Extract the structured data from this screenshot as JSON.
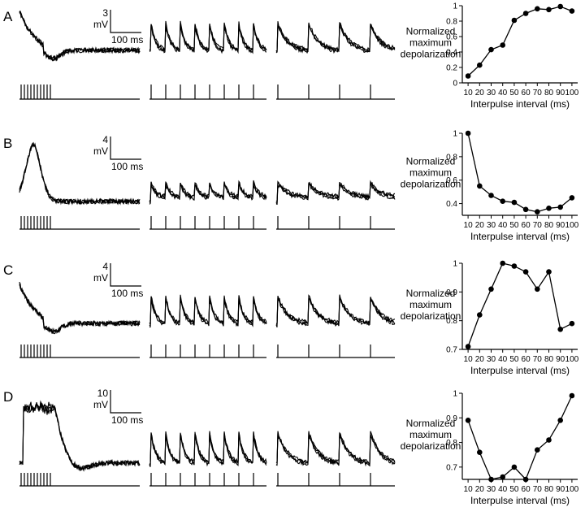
{
  "panels": [
    {
      "letter": "A",
      "scale_mv": "3",
      "mv_unit": "mV",
      "scale_ms": "100 ms",
      "sweep_kind": "train"
    },
    {
      "letter": "B",
      "scale_mv": "4",
      "mv_unit": "mV",
      "scale_ms": "100 ms",
      "sweep_kind": "slow"
    },
    {
      "letter": "C",
      "scale_mv": "4",
      "mv_unit": "mV",
      "scale_ms": "100 ms",
      "sweep_kind": "train"
    },
    {
      "letter": "D",
      "scale_mv": "10",
      "mv_unit": "mV",
      "scale_ms": "100 ms",
      "sweep_kind": "burst"
    }
  ],
  "chart_data": [
    {
      "panel": "A",
      "type": "line",
      "x": [
        10,
        20,
        30,
        40,
        50,
        60,
        70,
        80,
        90,
        100
      ],
      "values": [
        0.09,
        0.23,
        0.43,
        0.49,
        0.81,
        0.9,
        0.96,
        0.95,
        0.99,
        0.93
      ],
      "ylim": [
        0.0,
        1.0
      ],
      "yticks": [
        "0",
        "0.2",
        "0.4",
        "0.6",
        "0.8",
        "1"
      ],
      "xticks": [
        "10",
        "20",
        "30",
        "40",
        "50",
        "60",
        "70",
        "80",
        "90",
        "100"
      ],
      "ylabel": [
        "Normalized",
        "maximum",
        "depolarization"
      ],
      "xlabel": "Interpulse interval (ms)"
    },
    {
      "panel": "B",
      "type": "line",
      "x": [
        10,
        20,
        30,
        40,
        50,
        60,
        70,
        80,
        90,
        100
      ],
      "values": [
        1.0,
        0.55,
        0.47,
        0.42,
        0.41,
        0.35,
        0.33,
        0.36,
        0.37,
        0.45
      ],
      "ylim": [
        0.3,
        1.0
      ],
      "yticks": [
        "0.4",
        "0.6",
        "0.8",
        "1"
      ],
      "yticks_at": [
        0.4,
        0.6,
        0.8,
        1.0
      ],
      "xticks": [
        "10",
        "20",
        "30",
        "40",
        "50",
        "60",
        "70",
        "80",
        "90",
        "100"
      ],
      "ylabel": [
        "Normalized",
        "maximum",
        "depolarization"
      ],
      "xlabel": "Interpulse interval (ms)"
    },
    {
      "panel": "C",
      "type": "line",
      "x": [
        10,
        20,
        30,
        40,
        50,
        60,
        70,
        80,
        90,
        100
      ],
      "values": [
        0.71,
        0.82,
        0.91,
        1.0,
        0.99,
        0.97,
        0.91,
        0.97,
        0.77,
        0.79
      ],
      "ylim": [
        0.7,
        1.0
      ],
      "yticks": [
        "0.7",
        "0.8",
        "0.9",
        "1"
      ],
      "yticks_at": [
        0.7,
        0.8,
        0.9,
        1.0
      ],
      "xticks": [
        "10",
        "20",
        "30",
        "40",
        "50",
        "60",
        "70",
        "80",
        "90",
        "100"
      ],
      "ylabel": [
        "Normalized",
        "maximum",
        "depolarization"
      ],
      "xlabel": "Interpulse interval (ms)"
    },
    {
      "panel": "D",
      "type": "line",
      "x": [
        10,
        20,
        30,
        40,
        50,
        60,
        70,
        80,
        90,
        100
      ],
      "values": [
        0.89,
        0.76,
        0.65,
        0.66,
        0.7,
        0.64,
        0.77,
        0.81,
        0.89,
        0.99
      ],
      "ylim": [
        0.65,
        1.0
      ],
      "yticks": [
        "0.7",
        "0.8",
        "0.9",
        "1"
      ],
      "yticks_at": [
        0.7,
        0.8,
        0.9,
        1.0
      ],
      "xticks": [
        "10",
        "20",
        "30",
        "40",
        "50",
        "60",
        "70",
        "80",
        "90",
        "100"
      ],
      "ylabel": [
        "Normalized",
        "maximum",
        "depolarization"
      ],
      "xlabel": "Interpulse interval (ms)"
    }
  ]
}
